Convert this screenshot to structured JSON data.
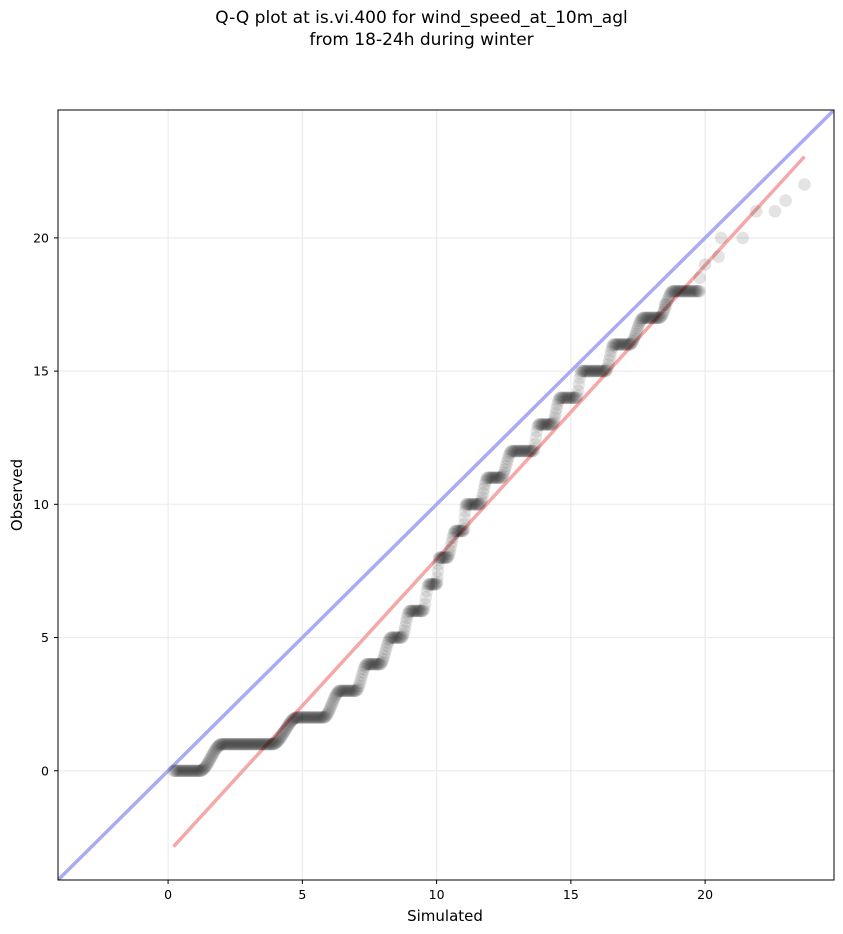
{
  "chart_data": {
    "type": "scatter",
    "title_line1": "Q-Q plot at is.vi.400 for wind_speed_at_10m_agl",
    "title_line2": "from 18-24h during winter",
    "xlabel": "Simulated",
    "ylabel": "Observed",
    "xlim": [
      -4.1,
      24.8
    ],
    "ylim": [
      -4.1,
      24.8
    ],
    "xticks": [
      0,
      5,
      10,
      15,
      20
    ],
    "yticks": [
      0,
      5,
      10,
      15,
      20
    ],
    "grid": true,
    "point_color": "#000000",
    "identity_line": {
      "color": "#aaaaf5",
      "from": [
        -4.1,
        -4.1
      ],
      "to": [
        24.8,
        24.8
      ]
    },
    "fit_line": {
      "color": "#f5a8a8",
      "from": [
        0.2,
        -2.85
      ],
      "to": [
        23.7,
        23.05
      ]
    },
    "quantile_steps": [
      {
        "y": 0,
        "x_start": 0.2,
        "x_end": 1.2
      },
      {
        "y": 1,
        "x_start": 2.0,
        "x_end": 3.9
      },
      {
        "y": 2,
        "x_start": 4.8,
        "x_end": 5.8
      },
      {
        "y": 3,
        "x_start": 6.4,
        "x_end": 7.0
      },
      {
        "y": 4,
        "x_start": 7.4,
        "x_end": 7.9
      },
      {
        "y": 5,
        "x_start": 8.3,
        "x_end": 8.7
      },
      {
        "y": 6,
        "x_start": 9.0,
        "x_end": 9.5
      },
      {
        "y": 7,
        "x_start": 9.7,
        "x_end": 10.0
      },
      {
        "y": 8,
        "x_start": 10.1,
        "x_end": 10.4
      },
      {
        "y": 9,
        "x_start": 10.7,
        "x_end": 11.0
      },
      {
        "y": 10,
        "x_start": 11.1,
        "x_end": 11.6
      },
      {
        "y": 11,
        "x_start": 11.9,
        "x_end": 12.4
      },
      {
        "y": 12,
        "x_start": 12.8,
        "x_end": 13.6
      },
      {
        "y": 13,
        "x_start": 13.8,
        "x_end": 14.3
      },
      {
        "y": 14,
        "x_start": 14.6,
        "x_end": 15.2
      },
      {
        "y": 15,
        "x_start": 15.4,
        "x_end": 16.3
      },
      {
        "y": 16,
        "x_start": 16.6,
        "x_end": 17.2
      },
      {
        "y": 17,
        "x_start": 17.7,
        "x_end": 18.3
      },
      {
        "y": 18,
        "x_start": 18.8,
        "x_end": 19.8
      }
    ],
    "sparse_points": [
      {
        "x": 18.5,
        "y": 17.5
      },
      {
        "x": 19.8,
        "y": 18.5
      },
      {
        "x": 20.0,
        "y": 19.0
      },
      {
        "x": 20.5,
        "y": 19.3
      },
      {
        "x": 20.6,
        "y": 20.0
      },
      {
        "x": 21.4,
        "y": 20.0
      },
      {
        "x": 21.9,
        "y": 21.0
      },
      {
        "x": 22.6,
        "y": 21.0
      },
      {
        "x": 23.0,
        "y": 21.4
      },
      {
        "x": 23.7,
        "y": 22.0
      }
    ]
  }
}
